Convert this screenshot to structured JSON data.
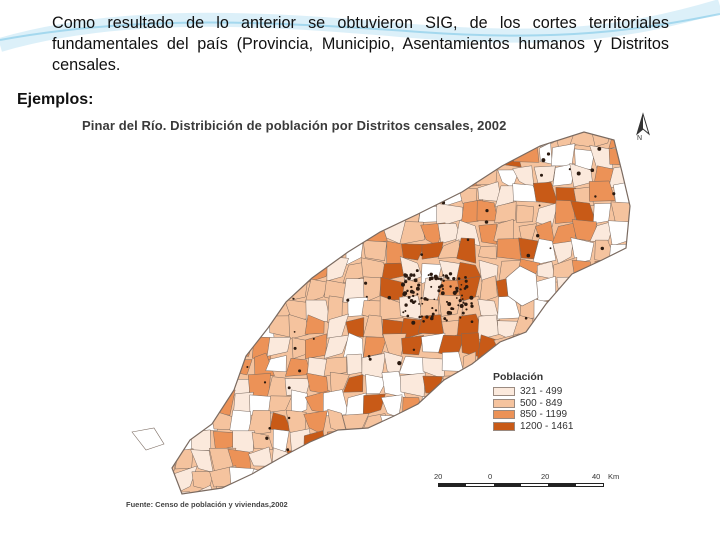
{
  "text": {
    "paragraph": "Como resultado de lo anterior se obtuvieron SIG, de los cortes territoriales fundamentales del país (Provincia, Municipio, Asentamientos humanos y Distritos censales.",
    "examples_label": "Ejemplos:"
  },
  "map": {
    "title": "Pinar del Río. Distribición de población por Distritos censales, 2002",
    "north_label": "N",
    "legend": {
      "title": "Población",
      "items": [
        {
          "label": "321 - 499",
          "color": "#fbe9dc"
        },
        {
          "label": "500 - 849",
          "color": "#f5c39e"
        },
        {
          "label": "850 - 1199",
          "color": "#ec9257"
        },
        {
          "label": "1200 - 1461",
          "color": "#c85a17"
        }
      ]
    },
    "scale": {
      "ticks": [
        "20",
        "0",
        "20",
        "40"
      ],
      "unit": "Km"
    },
    "source": "Fuente: Censo de población y viviendas,2002",
    "colors": {
      "border": "#7a6a60",
      "empty": "#ffffff",
      "settlement": "#2b1a10"
    }
  }
}
